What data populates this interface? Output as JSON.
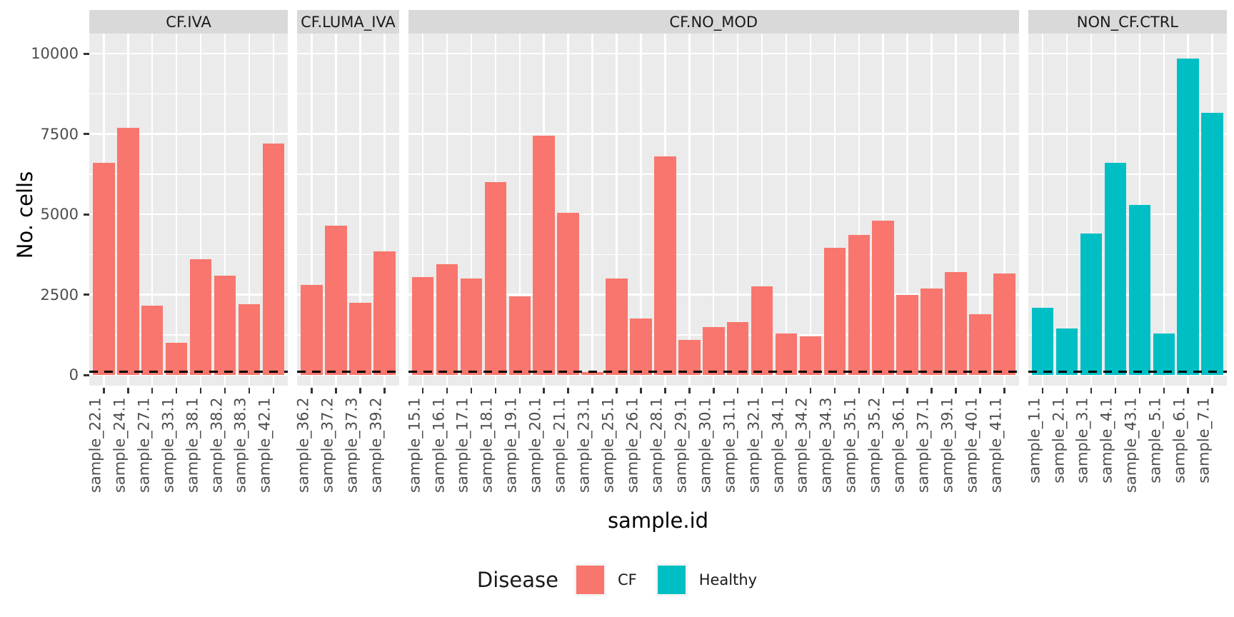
{
  "chart_data": {
    "type": "bar",
    "ylabel": "No. cells",
    "xlabel": "sample.id",
    "ylim": [
      0,
      10000
    ],
    "yticks": [
      0,
      2500,
      5000,
      7500,
      10000
    ],
    "yticks_minor": [
      1250,
      3750,
      6250,
      8750
    ],
    "grid": true,
    "hline": {
      "value": 100,
      "style": "dashed"
    },
    "legend": {
      "title": "Disease",
      "position": "bottom",
      "entries": [
        {
          "label": "CF",
          "color": "#F8766D"
        },
        {
          "label": "Healthy",
          "color": "#00BFC4"
        }
      ]
    },
    "facets": [
      {
        "label": "CF.IVA",
        "disease": "CF",
        "categories": [
          "sample_22.1",
          "sample_24.1",
          "sample_27.1",
          "sample_33.1",
          "sample_38.1",
          "sample_38.2",
          "sample_38.3",
          "sample_42.1"
        ],
        "values": [
          6600,
          7700,
          2150,
          1000,
          3600,
          3100,
          2200,
          7200
        ]
      },
      {
        "label": "CF.LUMA_IVA",
        "disease": "CF",
        "categories": [
          "sample_36.2",
          "sample_37.2",
          "sample_37.3",
          "sample_39.2"
        ],
        "values": [
          2800,
          4650,
          2250,
          3850
        ]
      },
      {
        "label": "CF.NO_MOD",
        "disease": "CF",
        "categories": [
          "sample_15.1",
          "sample_16.1",
          "sample_17.1",
          "sample_18.1",
          "sample_19.1",
          "sample_20.1",
          "sample_21.1",
          "sample_23.1",
          "sample_25.1",
          "sample_26.1",
          "sample_28.1",
          "sample_29.1",
          "sample_30.1",
          "sample_31.1",
          "sample_32.1",
          "sample_34.1",
          "sample_34.2",
          "sample_34.3",
          "sample_35.1",
          "sample_35.2",
          "sample_36.1",
          "sample_37.1",
          "sample_39.1",
          "sample_40.1",
          "sample_41.1"
        ],
        "values": [
          3050,
          3450,
          3000,
          6000,
          2450,
          7450,
          5050,
          100,
          3000,
          1750,
          6800,
          1100,
          1500,
          1650,
          2750,
          1300,
          1200,
          3950,
          4350,
          4800,
          2500,
          2700,
          3200,
          1900,
          3150
        ]
      },
      {
        "label": "NON_CF.CTRL",
        "disease": "Healthy",
        "categories": [
          "sample_1.1",
          "sample_2.1",
          "sample_3.1",
          "sample_4.1",
          "sample_43.1",
          "sample_5.1",
          "sample_6.1",
          "sample_7.1"
        ],
        "values": [
          2100,
          1450,
          4400,
          6600,
          5300,
          1300,
          9850,
          8150
        ]
      }
    ]
  },
  "colors": {
    "cf": "#F8766D",
    "healthy": "#00BFC4",
    "panel_bg": "#EBEBEB",
    "strip_bg": "#D9D9D9",
    "grid": "#FFFFFF",
    "axis_text": "#4D4D4D",
    "strip_text": "#1A1A1A",
    "threshold": "#000000"
  }
}
